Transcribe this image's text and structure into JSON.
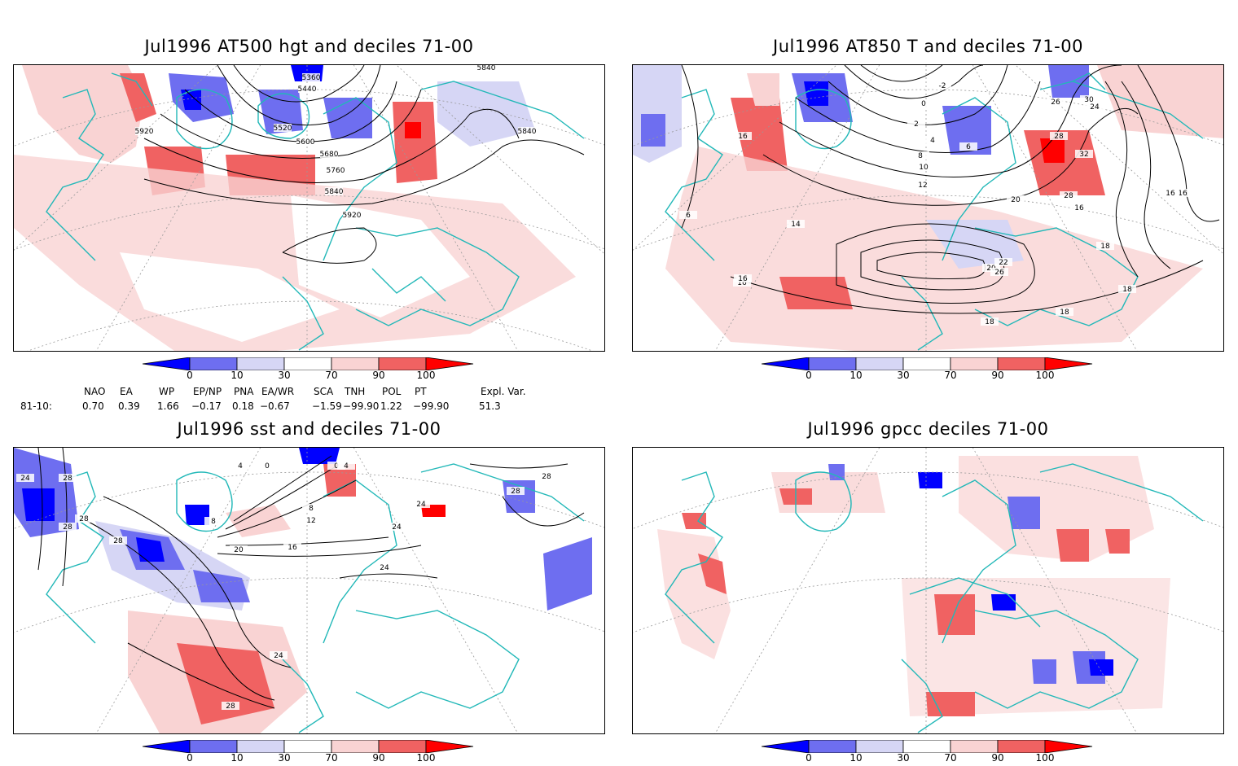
{
  "panels": [
    {
      "title": "Jul1996 AT500 hgt and deciles 71-00",
      "contour_labels": [
        "5360",
        "5440",
        "5520",
        "5600",
        "5680",
        "5760",
        "5840",
        "5840",
        "5840",
        "5920",
        "5920"
      ]
    },
    {
      "title": "Jul1996 AT850 T and deciles 71-00",
      "contour_labels": [
        "-2",
        "0",
        "2",
        "4",
        "6",
        "8",
        "10",
        "12",
        "14",
        "16",
        "16",
        "16",
        "16",
        "18",
        "18",
        "18",
        "18",
        "20",
        "20",
        "22",
        "24",
        "26",
        "26",
        "28",
        "28",
        "30",
        "32",
        "6",
        "16",
        "16"
      ]
    },
    {
      "title": "Jul1996 sst and deciles 71-00",
      "contour_labels": [
        "24",
        "28",
        "28",
        "28",
        "4",
        "0",
        "0",
        "4",
        "8",
        "8",
        "12",
        "16",
        "20",
        "24",
        "24",
        "24",
        "28",
        "28",
        "28",
        "28",
        "24"
      ]
    },
    {
      "title": "Jul1996 gpcc deciles 71-00",
      "contour_labels": []
    }
  ],
  "colorbar": {
    "tick_labels": [
      "0",
      "10",
      "30",
      "70",
      "90",
      "100"
    ],
    "colors": [
      "#0000ff",
      "#6e6ef0",
      "#d6d6f5",
      "#ffffff",
      "#f9d3d3",
      "#f06262",
      "#ff0000"
    ]
  },
  "indices": {
    "headers": [
      "NAO",
      "EA",
      "WP",
      "EP/NP",
      "PNA",
      "EA/WR",
      "SCA",
      "TNH",
      "POL",
      "PT",
      "Expl. Var."
    ],
    "row_label": "81-10:",
    "values": [
      "0.70",
      "0.39",
      "1.66",
      "−0.17",
      "0.18",
      "−0.67",
      "−1.59",
      "−99.90",
      "1.22",
      "−99.90",
      "51.3"
    ]
  },
  "map_colors": {
    "coast": "#22b8b8",
    "grid": "#999999",
    "contour": "#000000"
  }
}
